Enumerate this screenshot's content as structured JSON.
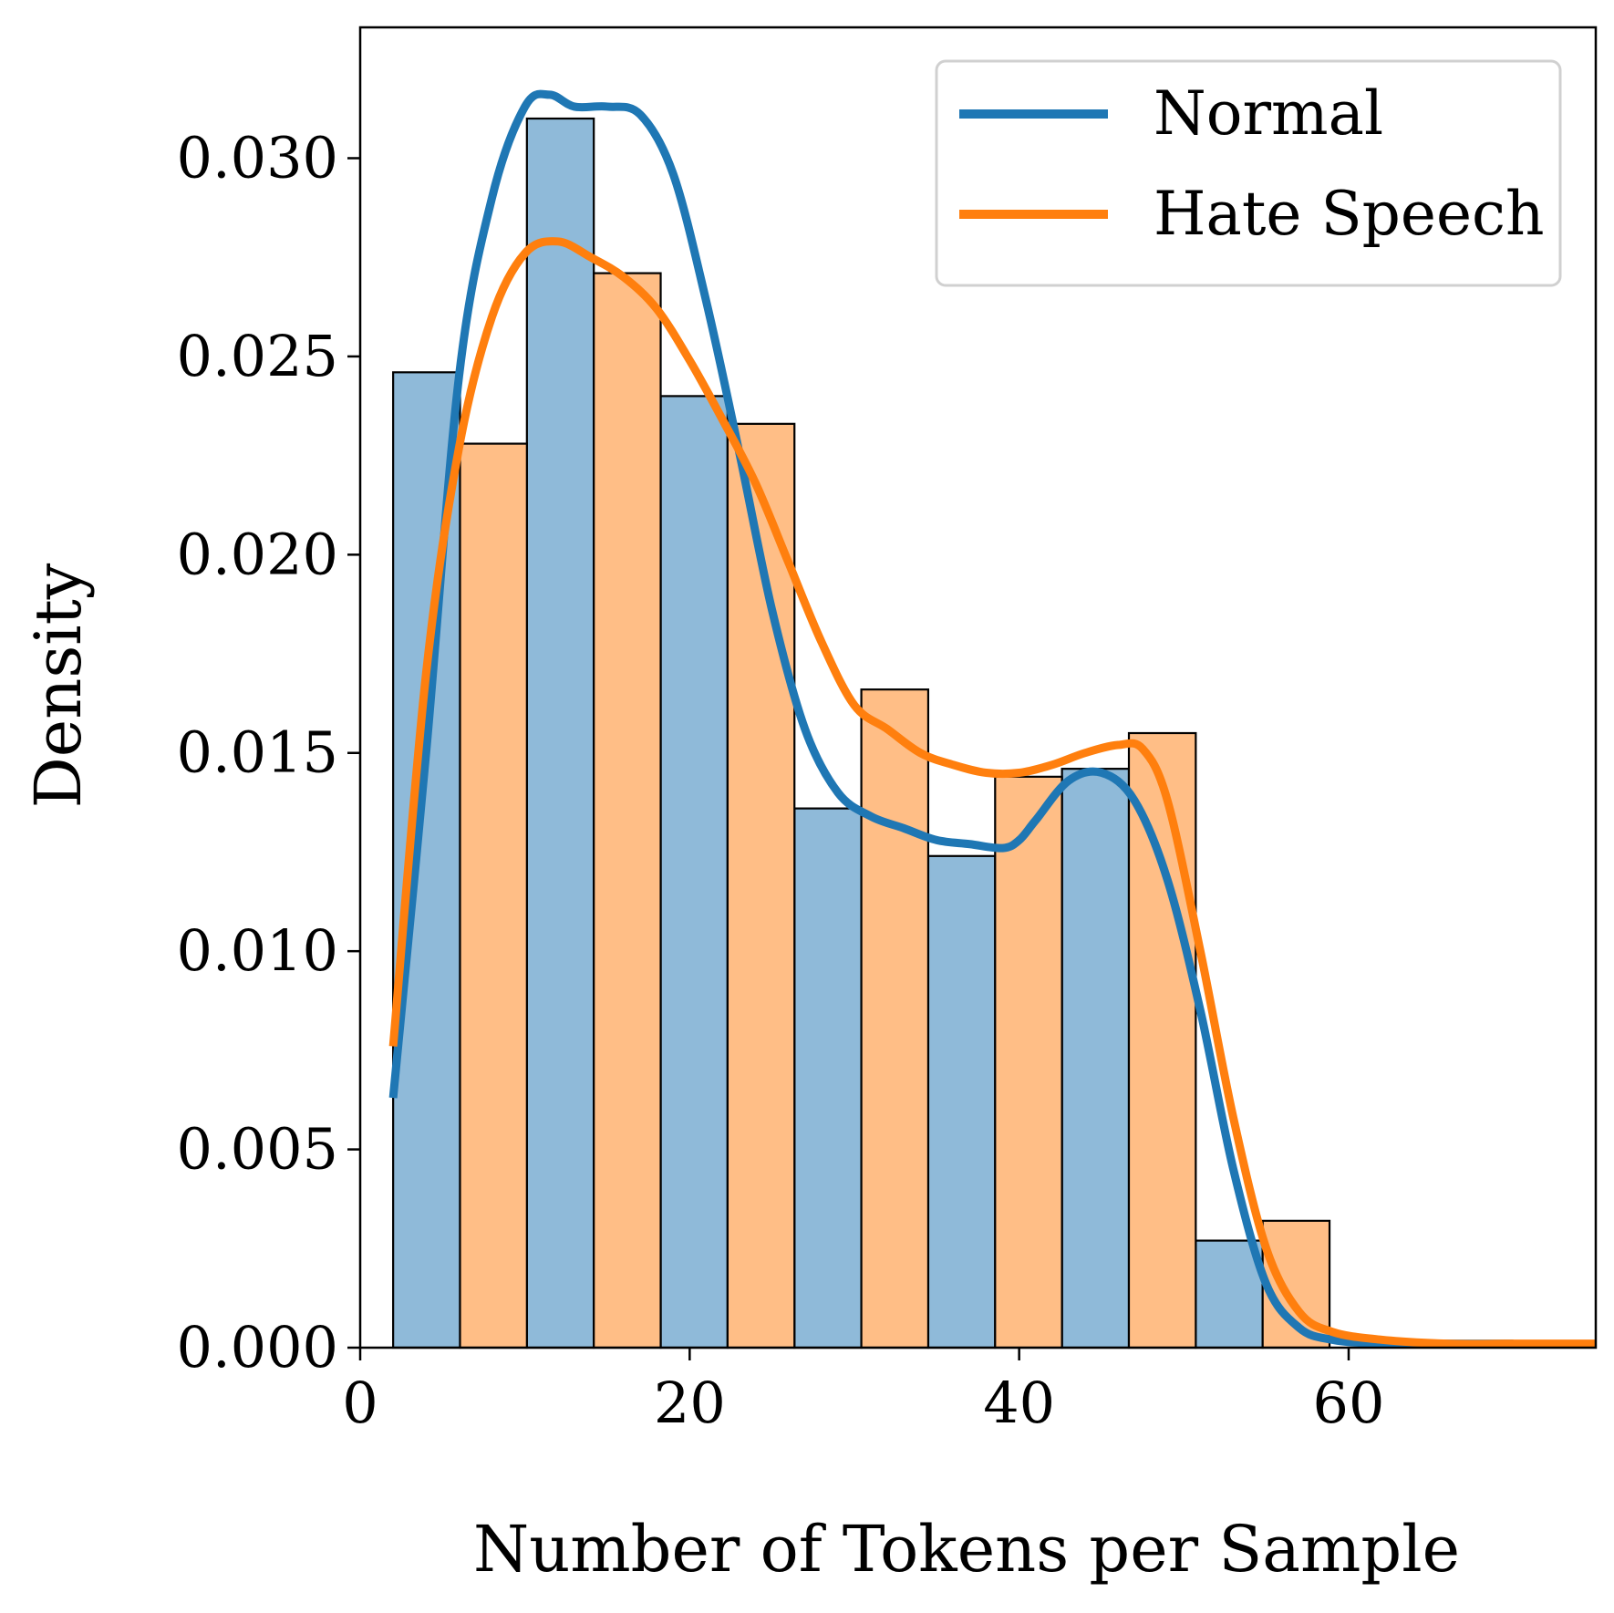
{
  "chart_data": {
    "type": "bar",
    "xlabel": "Number of Tokens per Sample",
    "ylabel": "Density",
    "xlim": [
      0,
      75
    ],
    "ylim": [
      0,
      0.0333
    ],
    "xticks": [
      "0",
      "20",
      "40",
      "60"
    ],
    "yticks": [
      "0.000",
      "0.005",
      "0.010",
      "0.015",
      "0.020",
      "0.025",
      "0.030"
    ],
    "legend_position": "top-right",
    "bin_width": 4.06,
    "series": [
      {
        "name": "Normal",
        "color": "#1f77b4",
        "bar_color": "#8fbad9",
        "bins": [
          {
            "x0": 2.0,
            "x1": 6.06,
            "value": 0.0246
          },
          {
            "x0": 10.12,
            "x1": 14.18,
            "value": 0.031
          },
          {
            "x0": 18.24,
            "x1": 22.3,
            "value": 0.024
          },
          {
            "x0": 26.36,
            "x1": 30.42,
            "value": 0.0136
          },
          {
            "x0": 34.48,
            "x1": 38.54,
            "value": 0.0124
          },
          {
            "x0": 42.6,
            "x1": 46.66,
            "value": 0.0146
          },
          {
            "x0": 50.72,
            "x1": 54.78,
            "value": 0.0027
          }
        ],
        "kde_x": [
          2,
          4,
          6,
          8,
          10,
          11.5,
          13,
          15,
          17,
          19,
          21,
          23,
          25,
          27,
          29,
          31,
          33,
          35,
          37,
          39,
          40,
          41,
          43,
          45,
          47,
          49,
          51,
          53,
          55,
          57,
          59,
          62,
          66,
          70
        ],
        "kde_y": [
          0.0063,
          0.015,
          0.0245,
          0.029,
          0.0313,
          0.0316,
          0.0313,
          0.0313,
          0.0311,
          0.0296,
          0.0264,
          0.0226,
          0.0186,
          0.0156,
          0.014,
          0.0134,
          0.0131,
          0.0128,
          0.0127,
          0.0126,
          0.0128,
          0.0133,
          0.0143,
          0.0145,
          0.0138,
          0.0118,
          0.0085,
          0.0045,
          0.0016,
          0.0005,
          0.0002,
          0.0001,
          0.0001,
          0.0001
        ]
      },
      {
        "name": "Hate Speech",
        "color": "#ff7f0e",
        "bar_color": "#ffbe86",
        "bins": [
          {
            "x0": 6.06,
            "x1": 10.12,
            "value": 0.0228
          },
          {
            "x0": 14.18,
            "x1": 18.24,
            "value": 0.0271
          },
          {
            "x0": 22.3,
            "x1": 26.36,
            "value": 0.0233
          },
          {
            "x0": 30.42,
            "x1": 34.48,
            "value": 0.0166
          },
          {
            "x0": 38.54,
            "x1": 42.6,
            "value": 0.0144
          },
          {
            "x0": 46.66,
            "x1": 50.72,
            "value": 0.0155
          },
          {
            "x0": 54.78,
            "x1": 58.84,
            "value": 0.0032
          }
        ],
        "kde_x": [
          2,
          4,
          6,
          8,
          10,
          12,
          14,
          16,
          18,
          20,
          22,
          24,
          26,
          28,
          30,
          32,
          34,
          36,
          38,
          40,
          42,
          44,
          46,
          47.5,
          49,
          51,
          53,
          55,
          57,
          59,
          62,
          66,
          70,
          75
        ],
        "kde_y": [
          0.0076,
          0.017,
          0.0227,
          0.026,
          0.0276,
          0.0279,
          0.0275,
          0.027,
          0.0262,
          0.0249,
          0.0234,
          0.0218,
          0.0198,
          0.0178,
          0.0162,
          0.0156,
          0.015,
          0.0147,
          0.0145,
          0.0145,
          0.0147,
          0.015,
          0.0152,
          0.0151,
          0.0138,
          0.01,
          0.0058,
          0.0025,
          0.0009,
          0.0004,
          0.0002,
          0.0001,
          0.0001,
          0.0001
        ]
      }
    ]
  }
}
